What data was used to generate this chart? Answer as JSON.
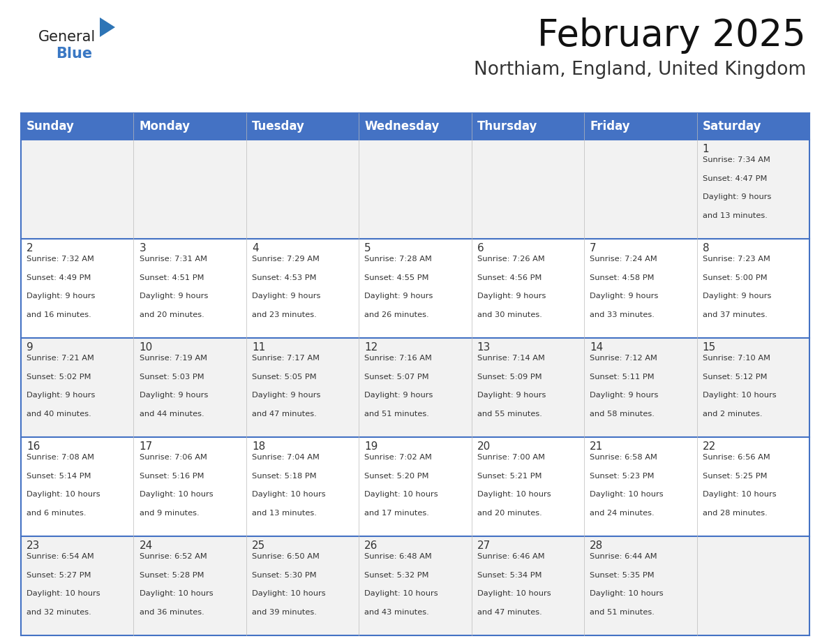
{
  "title": "February 2025",
  "subtitle": "Northiam, England, United Kingdom",
  "header_bg_color": "#4472C4",
  "header_text_color": "#FFFFFF",
  "cell_bg_odd": "#F2F2F2",
  "cell_bg_even": "#FFFFFF",
  "day_headers": [
    "Sunday",
    "Monday",
    "Tuesday",
    "Wednesday",
    "Thursday",
    "Friday",
    "Saturday"
  ],
  "title_fontsize": 38,
  "subtitle_fontsize": 19,
  "header_fontsize": 12,
  "day_num_fontsize": 11,
  "info_fontsize": 8.2,
  "days": [
    {
      "date": 1,
      "row": 0,
      "col": 6,
      "sunrise": "7:34 AM",
      "sunset": "4:47 PM",
      "daylight": "9 hours and 13 minutes."
    },
    {
      "date": 2,
      "row": 1,
      "col": 0,
      "sunrise": "7:32 AM",
      "sunset": "4:49 PM",
      "daylight": "9 hours and 16 minutes."
    },
    {
      "date": 3,
      "row": 1,
      "col": 1,
      "sunrise": "7:31 AM",
      "sunset": "4:51 PM",
      "daylight": "9 hours and 20 minutes."
    },
    {
      "date": 4,
      "row": 1,
      "col": 2,
      "sunrise": "7:29 AM",
      "sunset": "4:53 PM",
      "daylight": "9 hours and 23 minutes."
    },
    {
      "date": 5,
      "row": 1,
      "col": 3,
      "sunrise": "7:28 AM",
      "sunset": "4:55 PM",
      "daylight": "9 hours and 26 minutes."
    },
    {
      "date": 6,
      "row": 1,
      "col": 4,
      "sunrise": "7:26 AM",
      "sunset": "4:56 PM",
      "daylight": "9 hours and 30 minutes."
    },
    {
      "date": 7,
      "row": 1,
      "col": 5,
      "sunrise": "7:24 AM",
      "sunset": "4:58 PM",
      "daylight": "9 hours and 33 minutes."
    },
    {
      "date": 8,
      "row": 1,
      "col": 6,
      "sunrise": "7:23 AM",
      "sunset": "5:00 PM",
      "daylight": "9 hours and 37 minutes."
    },
    {
      "date": 9,
      "row": 2,
      "col": 0,
      "sunrise": "7:21 AM",
      "sunset": "5:02 PM",
      "daylight": "9 hours and 40 minutes."
    },
    {
      "date": 10,
      "row": 2,
      "col": 1,
      "sunrise": "7:19 AM",
      "sunset": "5:03 PM",
      "daylight": "9 hours and 44 minutes."
    },
    {
      "date": 11,
      "row": 2,
      "col": 2,
      "sunrise": "7:17 AM",
      "sunset": "5:05 PM",
      "daylight": "9 hours and 47 minutes."
    },
    {
      "date": 12,
      "row": 2,
      "col": 3,
      "sunrise": "7:16 AM",
      "sunset": "5:07 PM",
      "daylight": "9 hours and 51 minutes."
    },
    {
      "date": 13,
      "row": 2,
      "col": 4,
      "sunrise": "7:14 AM",
      "sunset": "5:09 PM",
      "daylight": "9 hours and 55 minutes."
    },
    {
      "date": 14,
      "row": 2,
      "col": 5,
      "sunrise": "7:12 AM",
      "sunset": "5:11 PM",
      "daylight": "9 hours and 58 minutes."
    },
    {
      "date": 15,
      "row": 2,
      "col": 6,
      "sunrise": "7:10 AM",
      "sunset": "5:12 PM",
      "daylight": "10 hours and 2 minutes."
    },
    {
      "date": 16,
      "row": 3,
      "col": 0,
      "sunrise": "7:08 AM",
      "sunset": "5:14 PM",
      "daylight": "10 hours and 6 minutes."
    },
    {
      "date": 17,
      "row": 3,
      "col": 1,
      "sunrise": "7:06 AM",
      "sunset": "5:16 PM",
      "daylight": "10 hours and 9 minutes."
    },
    {
      "date": 18,
      "row": 3,
      "col": 2,
      "sunrise": "7:04 AM",
      "sunset": "5:18 PM",
      "daylight": "10 hours and 13 minutes."
    },
    {
      "date": 19,
      "row": 3,
      "col": 3,
      "sunrise": "7:02 AM",
      "sunset": "5:20 PM",
      "daylight": "10 hours and 17 minutes."
    },
    {
      "date": 20,
      "row": 3,
      "col": 4,
      "sunrise": "7:00 AM",
      "sunset": "5:21 PM",
      "daylight": "10 hours and 20 minutes."
    },
    {
      "date": 21,
      "row": 3,
      "col": 5,
      "sunrise": "6:58 AM",
      "sunset": "5:23 PM",
      "daylight": "10 hours and 24 minutes."
    },
    {
      "date": 22,
      "row": 3,
      "col": 6,
      "sunrise": "6:56 AM",
      "sunset": "5:25 PM",
      "daylight": "10 hours and 28 minutes."
    },
    {
      "date": 23,
      "row": 4,
      "col": 0,
      "sunrise": "6:54 AM",
      "sunset": "5:27 PM",
      "daylight": "10 hours and 32 minutes."
    },
    {
      "date": 24,
      "row": 4,
      "col": 1,
      "sunrise": "6:52 AM",
      "sunset": "5:28 PM",
      "daylight": "10 hours and 36 minutes."
    },
    {
      "date": 25,
      "row": 4,
      "col": 2,
      "sunrise": "6:50 AM",
      "sunset": "5:30 PM",
      "daylight": "10 hours and 39 minutes."
    },
    {
      "date": 26,
      "row": 4,
      "col": 3,
      "sunrise": "6:48 AM",
      "sunset": "5:32 PM",
      "daylight": "10 hours and 43 minutes."
    },
    {
      "date": 27,
      "row": 4,
      "col": 4,
      "sunrise": "6:46 AM",
      "sunset": "5:34 PM",
      "daylight": "10 hours and 47 minutes."
    },
    {
      "date": 28,
      "row": 4,
      "col": 5,
      "sunrise": "6:44 AM",
      "sunset": "5:35 PM",
      "daylight": "10 hours and 51 minutes."
    }
  ],
  "num_rows": 5,
  "num_cols": 7,
  "line_color": "#4472C4",
  "text_color": "#333333",
  "logo_general_color": "#222222",
  "logo_blue_color": "#3A78C4",
  "logo_triangle_color": "#2E75B6"
}
